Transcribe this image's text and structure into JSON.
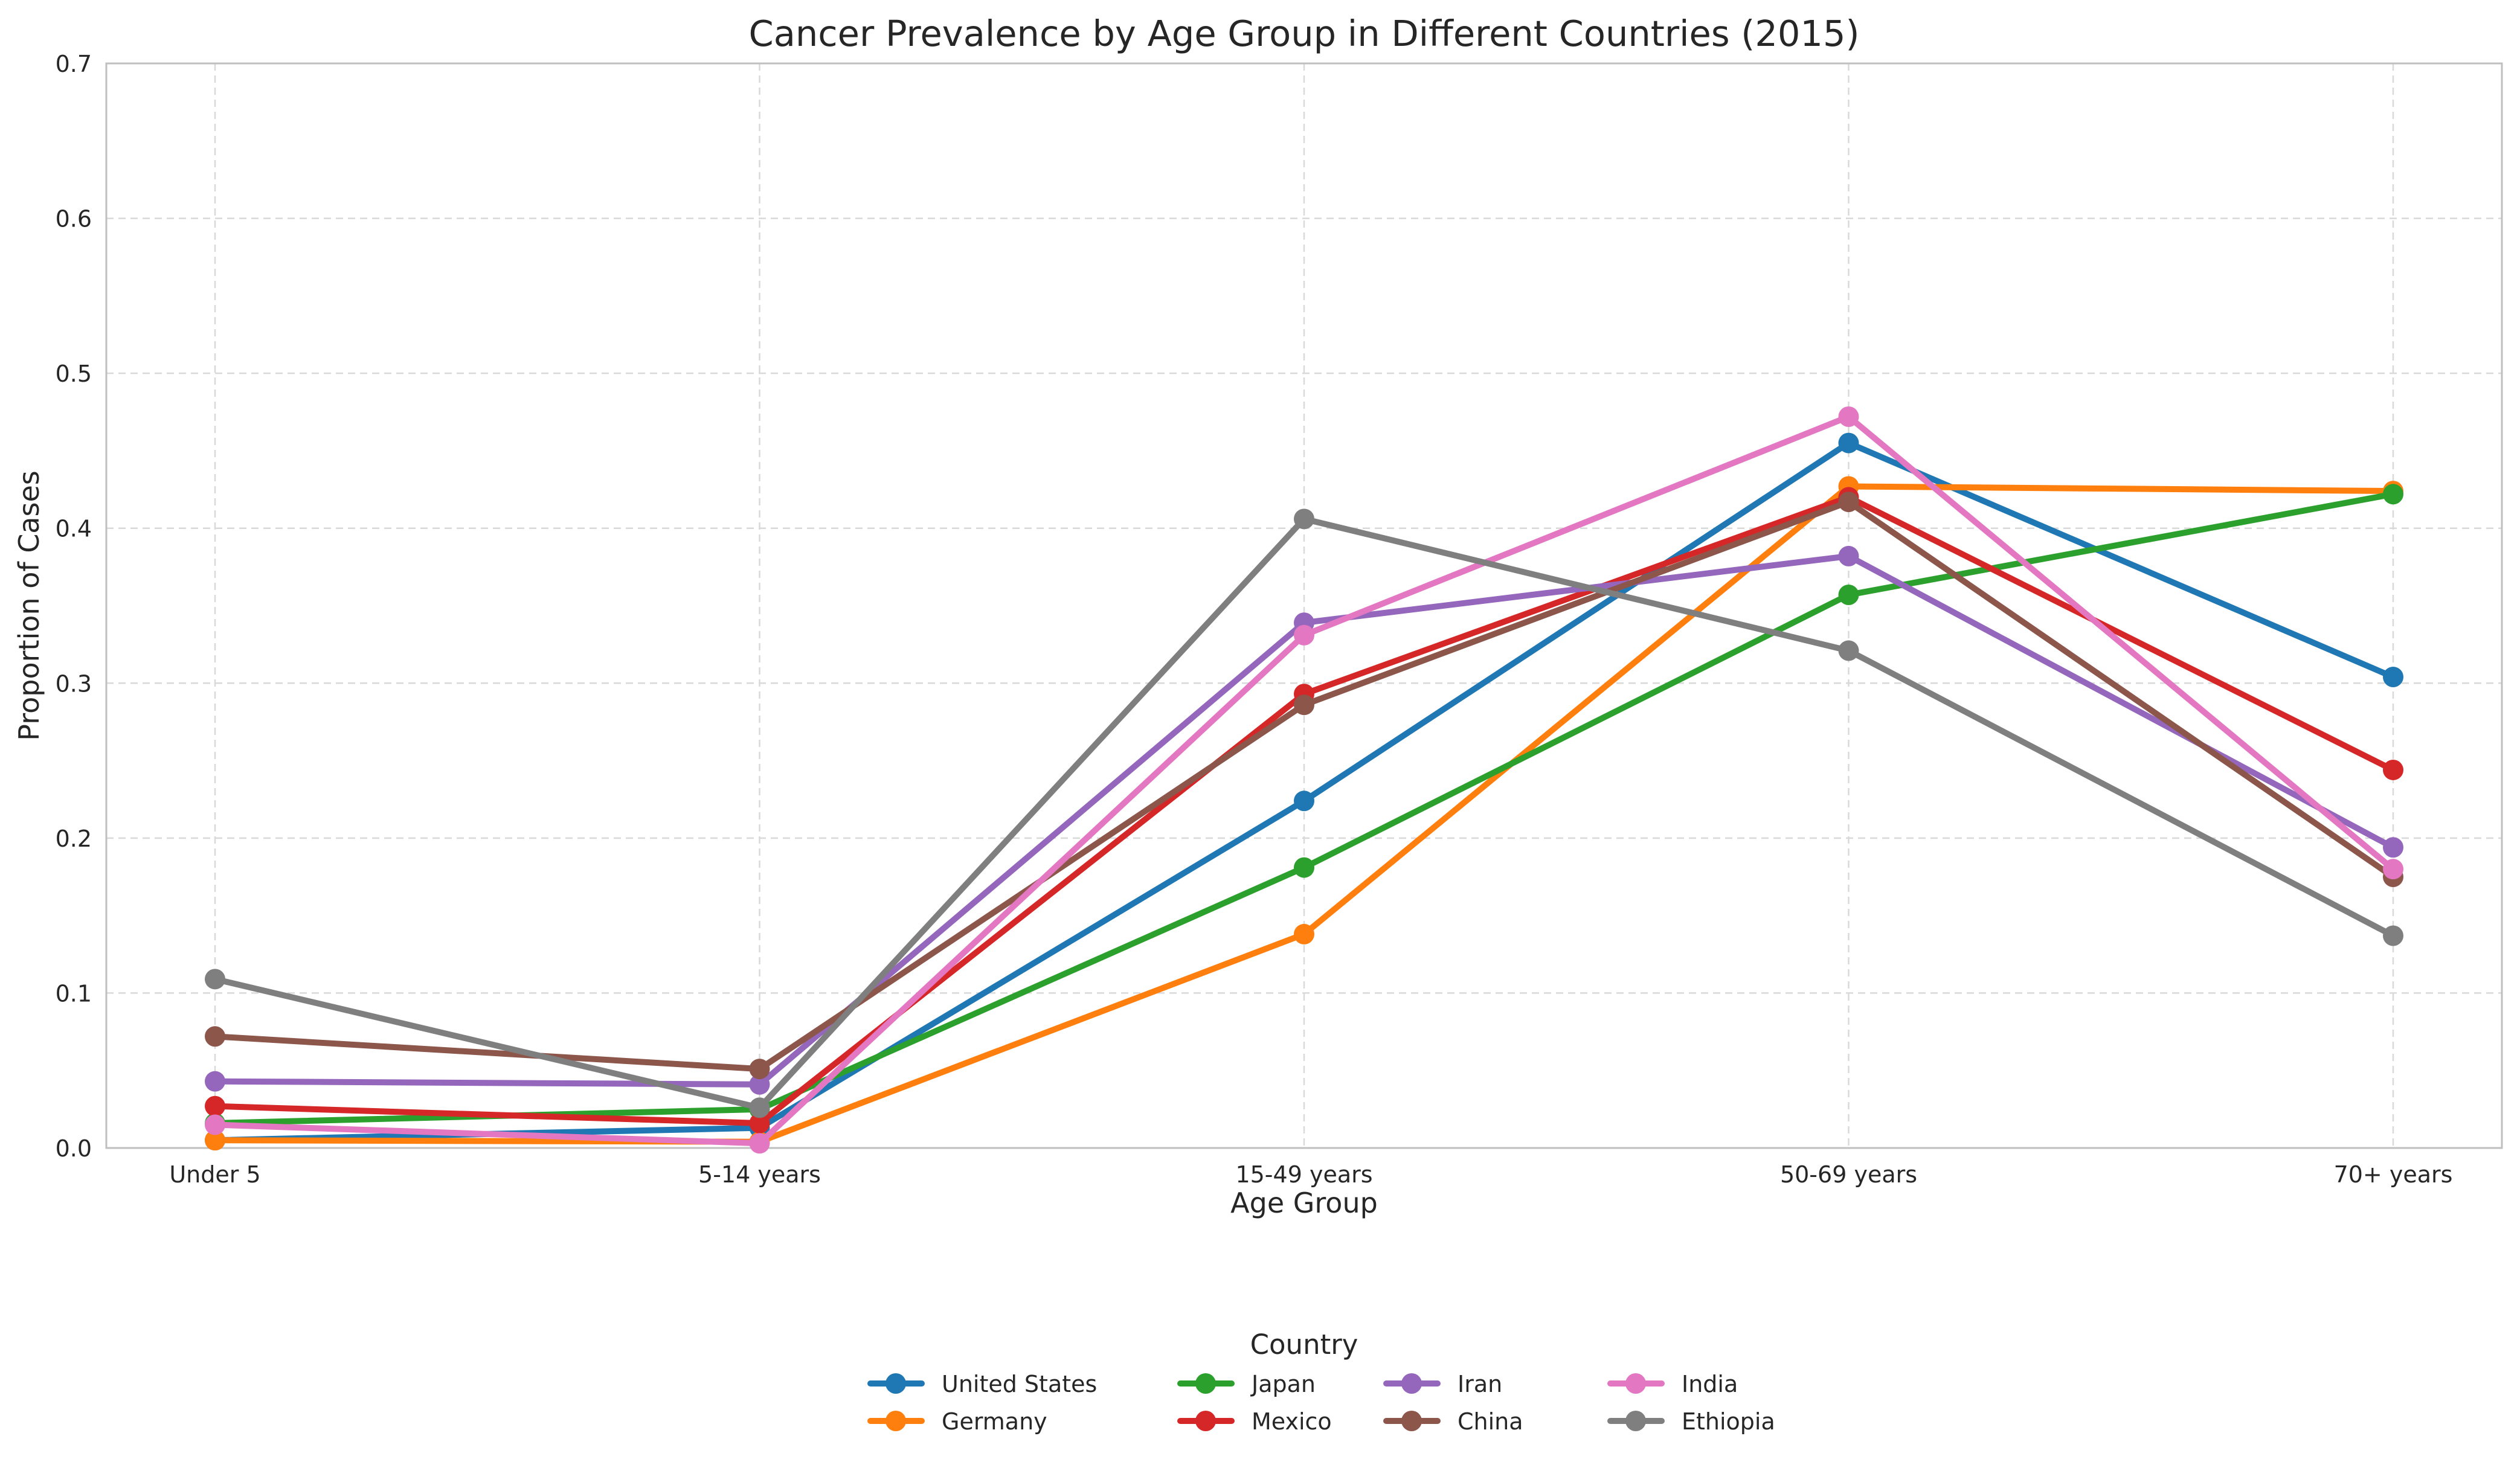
{
  "chart_data": {
    "type": "line",
    "title": "Cancer Prevalence by Age Group in Different Countries (2015)",
    "xlabel": "Age Group",
    "ylabel": "Proportion of Cases",
    "categories": [
      "Under 5",
      "5-14 years",
      "15-49 years",
      "50-69 years",
      "70+ years"
    ],
    "ylim": [
      0,
      0.7
    ],
    "yticks": [
      "0.0",
      "0.1",
      "0.2",
      "0.3",
      "0.4",
      "0.5",
      "0.6",
      "0.7"
    ],
    "grid": true,
    "legend": {
      "title": "Country",
      "placement": "bottom-center",
      "columns": 4
    },
    "series": [
      {
        "name": "United States",
        "color": "#1f77b4",
        "values": [
          0.005,
          0.013,
          0.224,
          0.455,
          0.304
        ]
      },
      {
        "name": "Germany",
        "color": "#ff7f0e",
        "values": [
          0.005,
          0.004,
          0.138,
          0.427,
          0.424
        ]
      },
      {
        "name": "Japan",
        "color": "#2ca02c",
        "values": [
          0.016,
          0.025,
          0.181,
          0.357,
          0.422
        ]
      },
      {
        "name": "Mexico",
        "color": "#d62728",
        "values": [
          0.027,
          0.016,
          0.293,
          0.42,
          0.244
        ]
      },
      {
        "name": "Iran",
        "color": "#9467bd",
        "values": [
          0.043,
          0.041,
          0.339,
          0.382,
          0.194
        ]
      },
      {
        "name": "China",
        "color": "#8c564b",
        "values": [
          0.072,
          0.051,
          0.286,
          0.417,
          0.175
        ]
      },
      {
        "name": "India",
        "color": "#e377c2",
        "values": [
          0.015,
          0.003,
          0.331,
          0.472,
          0.18
        ]
      },
      {
        "name": "Ethiopia",
        "color": "#7f7f7f",
        "values": [
          0.109,
          0.026,
          0.406,
          0.321,
          0.137
        ]
      }
    ]
  }
}
